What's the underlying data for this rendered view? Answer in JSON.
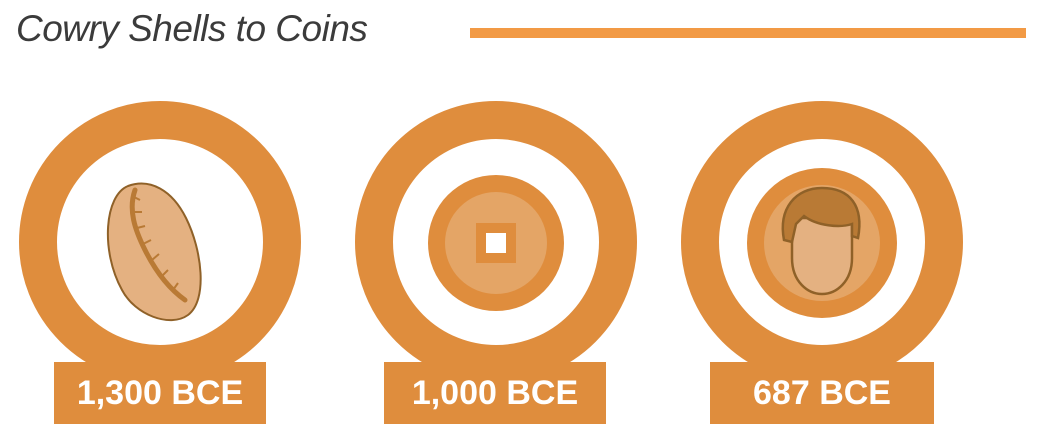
{
  "title": "Cowry Shells to Coins",
  "colors": {
    "accent_line": "#f29a45",
    "ring": "#df8d3d",
    "coin_light": "#e4a566",
    "face": "#e4b181",
    "hair": "#b97a35"
  },
  "milestones": [
    {
      "icon": "cowry-shell-icon",
      "label": "1,300 BCE"
    },
    {
      "icon": "square-hole-coin-icon",
      "label": "1,000 BCE"
    },
    {
      "icon": "portrait-coin-icon",
      "label": "687 BCE"
    }
  ]
}
